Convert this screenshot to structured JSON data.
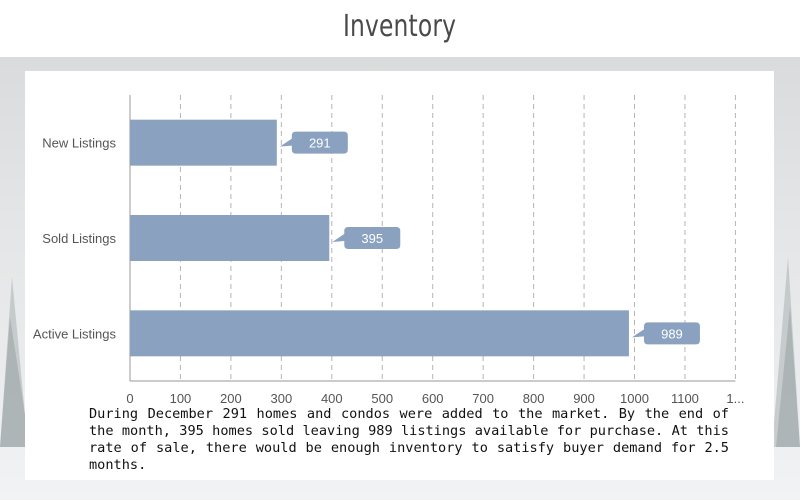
{
  "page": {
    "title": "Inventory"
  },
  "chart_data": {
    "type": "bar",
    "orientation": "horizontal",
    "title": "",
    "categories": [
      "New Listings",
      "Sold Listings",
      "Active Listings"
    ],
    "values": [
      291,
      395,
      989
    ],
    "data_labels": [
      "291",
      "395",
      "989"
    ],
    "x_ticks": [
      "0",
      "100",
      "200",
      "300",
      "400",
      "500",
      "600",
      "700",
      "800",
      "900",
      "1000",
      "1100",
      "1..."
    ],
    "xlim": [
      0,
      1200
    ],
    "grid": "vertical dashed",
    "legend": "none",
    "colors": {
      "bar": "#8aa2bf",
      "label_bg": "#8aa2bf",
      "label_text": "#ffffff",
      "grid": "#b5b5b5",
      "axis": "#999999"
    }
  },
  "caption": "During December 291 homes and condos were added to the market. By the end of the month, 395 homes sold leaving 989 listings available for purchase. At this rate of sale, there would be enough inventory to satisfy buyer demand for 2.5 months."
}
